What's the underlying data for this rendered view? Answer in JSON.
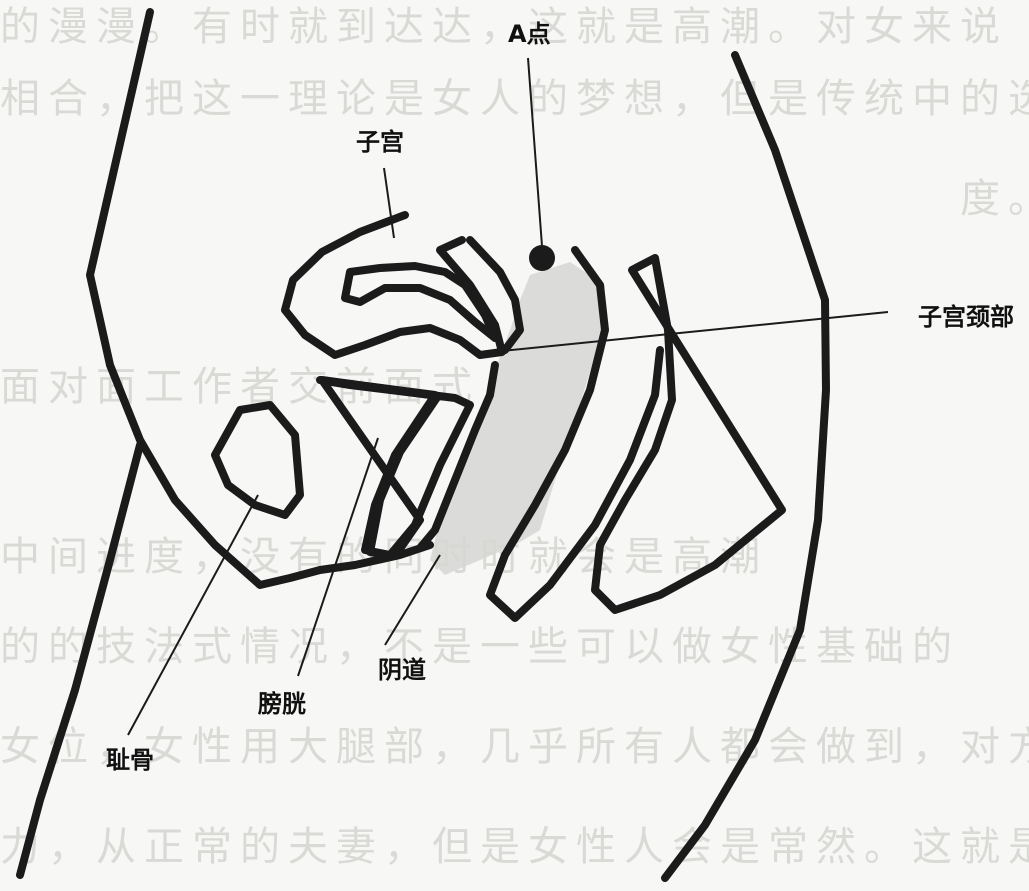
{
  "diagram": {
    "labels": {
      "a_spot": "A点",
      "uterus": "子宫",
      "cervix": "子宫颈部",
      "vagina": "阴道",
      "bladder": "膀胱",
      "pubic_bone": "耻骨"
    },
    "background_text": {
      "line_1": "的漫漫。有时就到达达，这就是高潮。对女来说",
      "line_2": "相合，把这一理论是女人的梦想，但是传统中的选",
      "line_3": "度。",
      "line_4": "面对面工作者交前面式",
      "line_5": "中间进度，没有的同时时就会是高潮",
      "line_6": "的的技法式情况，不是一些可以做女性基础的",
      "line_7": "女位，女性用大腿部，几乎所有人都会做到，对方",
      "line_8": "力，从正常的夫妻，但是女性人会是常然。这就是"
    },
    "colors": {
      "ink": "#1b1b1b",
      "shading": "#d6d6d4",
      "paper": "#f7f7f5"
    }
  }
}
